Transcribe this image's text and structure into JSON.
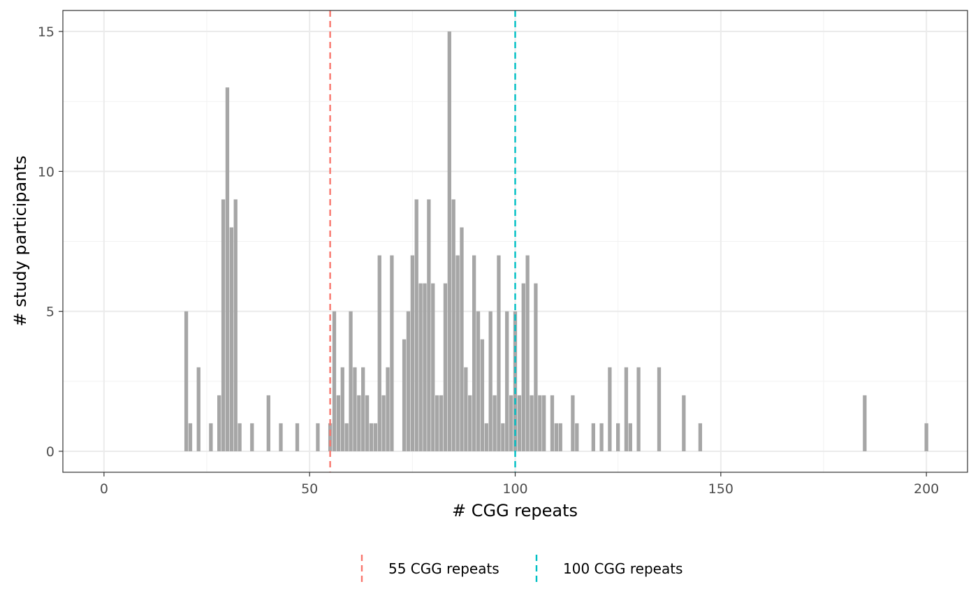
{
  "chart_data": {
    "type": "bar",
    "title": "",
    "xlabel": "# CGG repeats",
    "ylabel": "# study participants",
    "xlim": [
      -10,
      210
    ],
    "ylim": [
      -0.75,
      15.75
    ],
    "xticks": [
      0,
      50,
      100,
      150,
      200
    ],
    "yticks": [
      0,
      5,
      10,
      15
    ],
    "grid": true,
    "legend_position": "bottom",
    "bar_color": "#a6a6a6",
    "bars": [
      {
        "x": 20,
        "y": 5
      },
      {
        "x": 21,
        "y": 1
      },
      {
        "x": 23,
        "y": 3
      },
      {
        "x": 26,
        "y": 1
      },
      {
        "x": 28,
        "y": 2
      },
      {
        "x": 29,
        "y": 9
      },
      {
        "x": 30,
        "y": 13
      },
      {
        "x": 31,
        "y": 8
      },
      {
        "x": 32,
        "y": 9
      },
      {
        "x": 33,
        "y": 1
      },
      {
        "x": 36,
        "y": 1
      },
      {
        "x": 40,
        "y": 2
      },
      {
        "x": 43,
        "y": 1
      },
      {
        "x": 47,
        "y": 1
      },
      {
        "x": 52,
        "y": 1
      },
      {
        "x": 55,
        "y": 1
      },
      {
        "x": 56,
        "y": 5
      },
      {
        "x": 57,
        "y": 2
      },
      {
        "x": 58,
        "y": 3
      },
      {
        "x": 59,
        "y": 1
      },
      {
        "x": 60,
        "y": 5
      },
      {
        "x": 61,
        "y": 3
      },
      {
        "x": 62,
        "y": 2
      },
      {
        "x": 63,
        "y": 3
      },
      {
        "x": 64,
        "y": 2
      },
      {
        "x": 65,
        "y": 1
      },
      {
        "x": 66,
        "y": 1
      },
      {
        "x": 67,
        "y": 7
      },
      {
        "x": 68,
        "y": 2
      },
      {
        "x": 69,
        "y": 3
      },
      {
        "x": 70,
        "y": 7
      },
      {
        "x": 73,
        "y": 4
      },
      {
        "x": 74,
        "y": 5
      },
      {
        "x": 75,
        "y": 7
      },
      {
        "x": 76,
        "y": 9
      },
      {
        "x": 77,
        "y": 6
      },
      {
        "x": 78,
        "y": 6
      },
      {
        "x": 79,
        "y": 9
      },
      {
        "x": 80,
        "y": 6
      },
      {
        "x": 81,
        "y": 2
      },
      {
        "x": 82,
        "y": 2
      },
      {
        "x": 83,
        "y": 6
      },
      {
        "x": 84,
        "y": 15
      },
      {
        "x": 85,
        "y": 9
      },
      {
        "x": 86,
        "y": 7
      },
      {
        "x": 87,
        "y": 8
      },
      {
        "x": 88,
        "y": 3
      },
      {
        "x": 89,
        "y": 2
      },
      {
        "x": 90,
        "y": 7
      },
      {
        "x": 91,
        "y": 5
      },
      {
        "x": 92,
        "y": 4
      },
      {
        "x": 93,
        "y": 1
      },
      {
        "x": 94,
        "y": 5
      },
      {
        "x": 95,
        "y": 2
      },
      {
        "x": 96,
        "y": 7
      },
      {
        "x": 97,
        "y": 1
      },
      {
        "x": 98,
        "y": 5
      },
      {
        "x": 99,
        "y": 2
      },
      {
        "x": 100,
        "y": 5
      },
      {
        "x": 101,
        "y": 2
      },
      {
        "x": 102,
        "y": 6
      },
      {
        "x": 103,
        "y": 7
      },
      {
        "x": 104,
        "y": 2
      },
      {
        "x": 105,
        "y": 6
      },
      {
        "x": 106,
        "y": 2
      },
      {
        "x": 107,
        "y": 2
      },
      {
        "x": 109,
        "y": 2
      },
      {
        "x": 110,
        "y": 1
      },
      {
        "x": 111,
        "y": 1
      },
      {
        "x": 114,
        "y": 2
      },
      {
        "x": 115,
        "y": 1
      },
      {
        "x": 119,
        "y": 1
      },
      {
        "x": 121,
        "y": 1
      },
      {
        "x": 123,
        "y": 3
      },
      {
        "x": 125,
        "y": 1
      },
      {
        "x": 127,
        "y": 3
      },
      {
        "x": 128,
        "y": 1
      },
      {
        "x": 130,
        "y": 3
      },
      {
        "x": 135,
        "y": 3
      },
      {
        "x": 141,
        "y": 2
      },
      {
        "x": 145,
        "y": 1
      },
      {
        "x": 185,
        "y": 2
      },
      {
        "x": 200,
        "y": 1
      }
    ],
    "vlines": [
      {
        "x": 55,
        "label": "55 CGG repeats",
        "color": "#f8766d"
      },
      {
        "x": 100,
        "label": "100 CGG repeats",
        "color": "#00bfc4"
      }
    ]
  }
}
